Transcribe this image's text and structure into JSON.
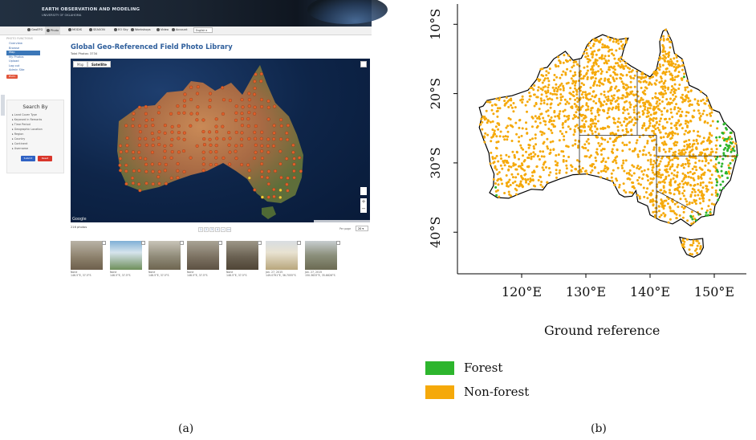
{
  "panel_a": {
    "header": {
      "title": "EARTH OBSERVATION AND MODELING",
      "subtitle": "UNIVERSITY OF OKLAHOMA"
    },
    "nav": {
      "items": [
        {
          "label": "GeoEFG"
        },
        {
          "label": "Photo"
        },
        {
          "label": "MODIS"
        },
        {
          "label": "SEASON"
        },
        {
          "label": "EO Sky"
        },
        {
          "label": "Workshops"
        },
        {
          "label": "Video"
        },
        {
          "label": "Account"
        }
      ],
      "language": "English"
    },
    "sidebar": {
      "heading": "PHOTO FUNCTIONS",
      "links": [
        "Overview",
        "Browse",
        "Map",
        "My Photos",
        "Upload",
        "Log out",
        "Admin Site"
      ],
      "active": "Map",
      "add_label": "Photo"
    },
    "search": {
      "title": "Search By",
      "criteria": [
        "Land Cover Type",
        "Keyword in Remarks",
        "Time Period",
        "Geographic Location",
        "Region",
        "Country",
        "Continent",
        "Username"
      ],
      "submit_label": "Submit",
      "reset_label": "Reset",
      "submit_color": "#2f62c4",
      "reset_color": "#d9362b"
    },
    "library": {
      "title": "Global Geo-Referenced Field Photo Library",
      "total": "Total Photos: 3734",
      "map_tabs": [
        "Map",
        "Satellite"
      ],
      "brand": "Google",
      "photo_count": "216 photos",
      "pages": [
        "1",
        "2",
        "3",
        "4",
        "»",
        "»»"
      ],
      "per_page_label": "Per page",
      "per_page_value": "20"
    },
    "thumbnails": [
      {
        "line1": "None",
        "line2": "146.5°E, 37.5°S"
      },
      {
        "line1": "None",
        "line2": "146.5°E, 37.5°S"
      },
      {
        "line1": "None",
        "line2": "146.5°E, 37.5°S"
      },
      {
        "line1": "None",
        "line2": "146.5°E, 37.5°S"
      },
      {
        "line1": "None",
        "line2": "146.5°E, 37.5°S"
      },
      {
        "line1": "Jan. 27, 2015",
        "line2": "149.0791°E, 36.7055°S"
      },
      {
        "line1": "Jan. 27, 2015",
        "line2": "150.3633°E, 35.6626°S"
      }
    ],
    "label": "(a)"
  },
  "panel_b": {
    "chart_data": {
      "type": "scatter",
      "x_ticks": [
        "120°E",
        "130°E",
        "140°E",
        "150°E"
      ],
      "y_ticks": [
        "10°S",
        "20°S",
        "30°S",
        "40°S"
      ],
      "xlim": [
        110,
        155
      ],
      "ylim": [
        -46,
        -8
      ],
      "series": [
        {
          "name": "Forest",
          "color": "#2db52d"
        },
        {
          "name": "Non-forest",
          "color": "#f5a90a"
        }
      ]
    },
    "title": "Ground reference",
    "legend": [
      {
        "label": "Forest",
        "color": "#2db52d"
      },
      {
        "label": "Non-forest",
        "color": "#f5a90a"
      }
    ],
    "label": "(b)"
  }
}
